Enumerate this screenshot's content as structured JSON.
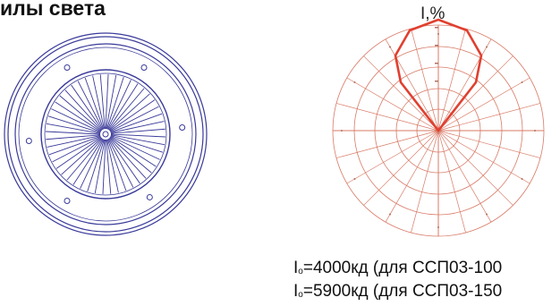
{
  "heading": "илы света",
  "polar": {
    "axis_label": "I,%",
    "grid_color": "#d87a66",
    "curve_color": "#e04030"
  },
  "lamp": {
    "stroke_color": "#3a3a9a"
  },
  "specs": [
    {
      "symbol": "I",
      "subscript": "о",
      "text": "=4000кд (для ССП03-100"
    },
    {
      "symbol": "I",
      "subscript": "о",
      "text": "=5900кд (для ССП03-150"
    }
  ]
}
